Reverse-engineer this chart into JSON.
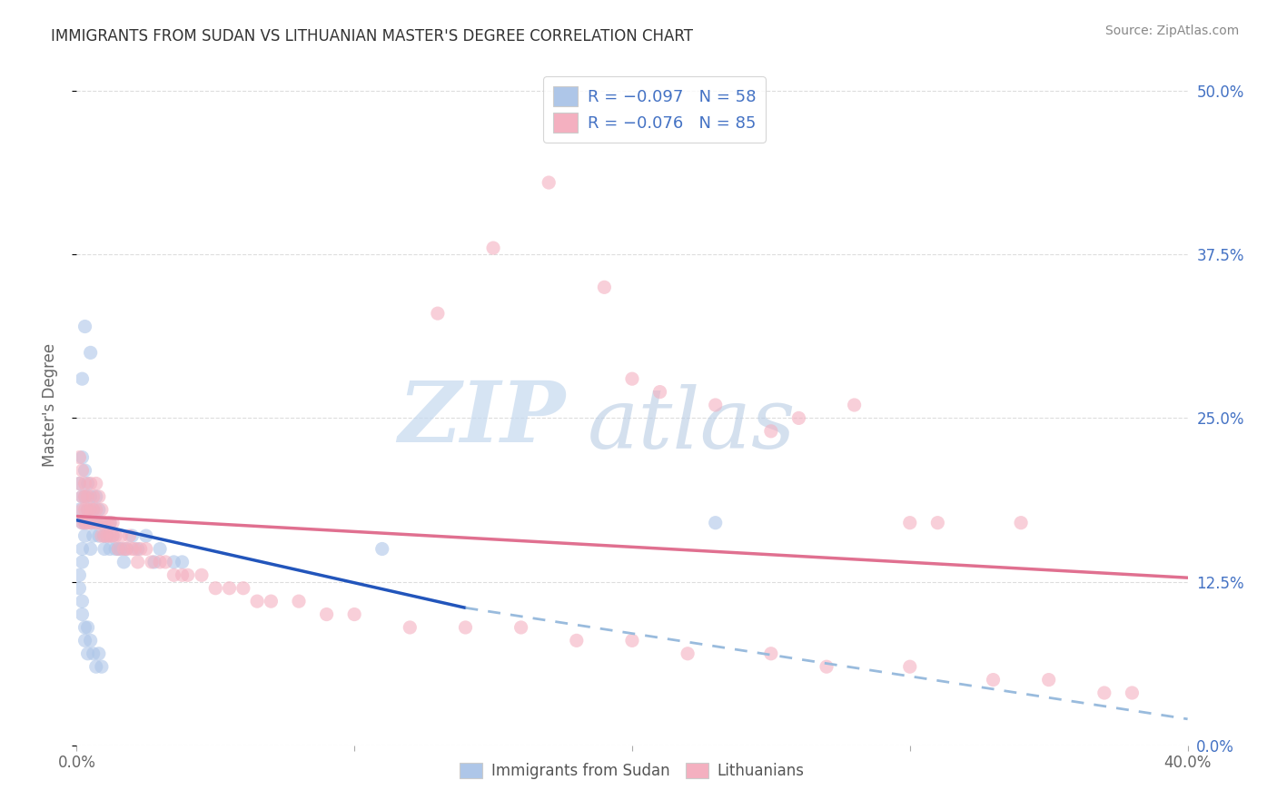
{
  "title": "IMMIGRANTS FROM SUDAN VS LITHUANIAN MASTER'S DEGREE CORRELATION CHART",
  "source": "Source: ZipAtlas.com",
  "ylabel": "Master's Degree",
  "ytick_labels": [
    "0.0%",
    "12.5%",
    "25.0%",
    "37.5%",
    "50.0%"
  ],
  "ytick_values": [
    0.0,
    0.125,
    0.25,
    0.375,
    0.5
  ],
  "xlim": [
    0.0,
    0.4
  ],
  "ylim": [
    0.0,
    0.52
  ],
  "legend_label1": "Immigrants from Sudan",
  "legend_label2": "Lithuanians",
  "color_blue": "#aec6e8",
  "color_pink": "#f4b0c0",
  "color_line_blue": "#2255bb",
  "color_line_pink": "#e07090",
  "color_dashed": "#99bbdd",
  "color_text_blue": "#4472c4",
  "watermark_color": "#dce8f5",
  "background_color": "#ffffff",
  "grid_color": "#dddddd",
  "sudan_x": [
    0.001,
    0.001,
    0.002,
    0.002,
    0.002,
    0.002,
    0.002,
    0.003,
    0.003,
    0.003,
    0.003,
    0.004,
    0.004,
    0.005,
    0.005,
    0.005,
    0.006,
    0.006,
    0.007,
    0.007,
    0.008,
    0.008,
    0.009,
    0.01,
    0.01,
    0.011,
    0.012,
    0.012,
    0.013,
    0.014,
    0.015,
    0.016,
    0.017,
    0.018,
    0.02,
    0.022,
    0.025,
    0.028,
    0.03,
    0.035,
    0.038,
    0.001,
    0.001,
    0.002,
    0.002,
    0.003,
    0.003,
    0.004,
    0.004,
    0.005,
    0.006,
    0.007,
    0.008,
    0.009,
    0.11,
    0.23,
    0.003,
    0.005,
    0.002
  ],
  "sudan_y": [
    0.2,
    0.18,
    0.22,
    0.19,
    0.17,
    0.15,
    0.14,
    0.21,
    0.19,
    0.17,
    0.16,
    0.2,
    0.18,
    0.19,
    0.17,
    0.15,
    0.18,
    0.16,
    0.19,
    0.17,
    0.18,
    0.16,
    0.17,
    0.16,
    0.15,
    0.16,
    0.17,
    0.15,
    0.16,
    0.15,
    0.15,
    0.15,
    0.14,
    0.15,
    0.16,
    0.15,
    0.16,
    0.14,
    0.15,
    0.14,
    0.14,
    0.13,
    0.12,
    0.11,
    0.1,
    0.09,
    0.08,
    0.09,
    0.07,
    0.08,
    0.07,
    0.06,
    0.07,
    0.06,
    0.15,
    0.17,
    0.32,
    0.3,
    0.28
  ],
  "lithuanian_x": [
    0.001,
    0.001,
    0.002,
    0.002,
    0.002,
    0.002,
    0.003,
    0.003,
    0.003,
    0.003,
    0.004,
    0.004,
    0.004,
    0.005,
    0.005,
    0.005,
    0.006,
    0.006,
    0.007,
    0.007,
    0.007,
    0.008,
    0.008,
    0.009,
    0.009,
    0.01,
    0.01,
    0.011,
    0.011,
    0.012,
    0.012,
    0.013,
    0.013,
    0.014,
    0.015,
    0.016,
    0.017,
    0.018,
    0.019,
    0.02,
    0.021,
    0.022,
    0.023,
    0.025,
    0.027,
    0.03,
    0.032,
    0.035,
    0.038,
    0.04,
    0.045,
    0.05,
    0.055,
    0.06,
    0.065,
    0.07,
    0.08,
    0.09,
    0.1,
    0.12,
    0.14,
    0.16,
    0.18,
    0.2,
    0.22,
    0.25,
    0.27,
    0.3,
    0.33,
    0.35,
    0.37,
    0.38,
    0.3,
    0.25,
    0.2,
    0.15,
    0.13,
    0.17,
    0.19,
    0.21,
    0.23,
    0.26,
    0.28,
    0.31,
    0.34
  ],
  "lithuanian_y": [
    0.22,
    0.2,
    0.21,
    0.19,
    0.18,
    0.17,
    0.2,
    0.19,
    0.18,
    0.17,
    0.19,
    0.18,
    0.17,
    0.2,
    0.18,
    0.17,
    0.19,
    0.18,
    0.2,
    0.18,
    0.17,
    0.19,
    0.17,
    0.18,
    0.16,
    0.17,
    0.16,
    0.17,
    0.16,
    0.17,
    0.16,
    0.17,
    0.16,
    0.16,
    0.15,
    0.16,
    0.15,
    0.15,
    0.16,
    0.15,
    0.15,
    0.14,
    0.15,
    0.15,
    0.14,
    0.14,
    0.14,
    0.13,
    0.13,
    0.13,
    0.13,
    0.12,
    0.12,
    0.12,
    0.11,
    0.11,
    0.11,
    0.1,
    0.1,
    0.09,
    0.09,
    0.09,
    0.08,
    0.08,
    0.07,
    0.07,
    0.06,
    0.06,
    0.05,
    0.05,
    0.04,
    0.04,
    0.17,
    0.24,
    0.28,
    0.38,
    0.33,
    0.43,
    0.35,
    0.27,
    0.26,
    0.25,
    0.26,
    0.17,
    0.17
  ],
  "trend_blue_x0": 0.0,
  "trend_blue_y0": 0.172,
  "trend_blue_x1": 0.14,
  "trend_blue_y1": 0.105,
  "trend_blue_dash_x0": 0.14,
  "trend_blue_dash_y0": 0.105,
  "trend_blue_dash_x1": 0.4,
  "trend_blue_dash_y1": 0.02,
  "trend_pink_x0": 0.0,
  "trend_pink_y0": 0.175,
  "trend_pink_x1": 0.4,
  "trend_pink_y1": 0.128
}
